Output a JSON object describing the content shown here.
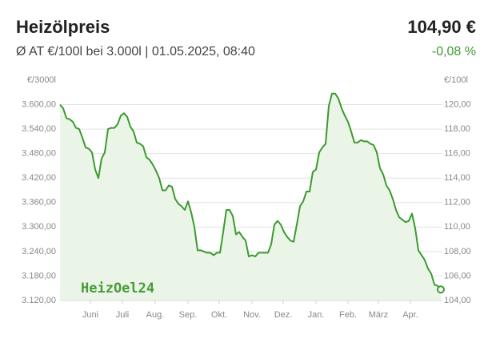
{
  "chart_data": {
    "type": "line",
    "title": "Heizölpreis",
    "price": "104,90 €",
    "subtitle": "Ø AT €/100l bei 3.000l | 01.05.2025, 08:40",
    "change": "-0,08 %",
    "ylabel": "€/3000l",
    "y2label": "€/100l",
    "watermark": "HeizOel24",
    "grid": true,
    "area": true,
    "xlim": [
      0,
      119
    ],
    "xticks": [
      {
        "value": 9.5,
        "label": "Juni"
      },
      {
        "value": 19.5,
        "label": "Juli"
      },
      {
        "value": 29.75,
        "label": "Aug."
      },
      {
        "value": 40,
        "label": "Sep."
      },
      {
        "value": 49.75,
        "label": "Okt."
      },
      {
        "value": 60,
        "label": "Nov."
      },
      {
        "value": 69.75,
        "label": "Dez."
      },
      {
        "value": 80,
        "label": "Jan."
      },
      {
        "value": 90,
        "label": "Feb."
      },
      {
        "value": 99.5,
        "label": "März"
      },
      {
        "value": 109.5,
        "label": "Apr."
      }
    ],
    "ylim": [
      3120,
      3660
    ],
    "yticks": [
      {
        "value": 3600,
        "label": "3.600,00"
      },
      {
        "value": 3540,
        "label": "3.540,00"
      },
      {
        "value": 3480,
        "label": "3.480,00"
      },
      {
        "value": 3420,
        "label": "3.420,00"
      },
      {
        "value": 3360,
        "label": "3.360,00"
      },
      {
        "value": 3300,
        "label": "3.300,00"
      },
      {
        "value": 3240,
        "label": "3.240,00"
      },
      {
        "value": 3180,
        "label": "3.180,00"
      },
      {
        "value": 3120,
        "label": "3.120,00"
      }
    ],
    "y2lim": [
      104,
      122
    ],
    "y2ticks": [
      {
        "value": 120,
        "label": "120,00"
      },
      {
        "value": 118,
        "label": "118,00"
      },
      {
        "value": 116,
        "label": "116,00"
      },
      {
        "value": 114,
        "label": "114,00"
      },
      {
        "value": 112,
        "label": "112,00"
      },
      {
        "value": 110,
        "label": "110,00"
      },
      {
        "value": 108,
        "label": "108,00"
      },
      {
        "value": 106,
        "label": "106,00"
      },
      {
        "value": 104,
        "label": "104,00"
      }
    ],
    "series": [
      {
        "color": "#3c9a2f",
        "fill": "#eaf5e7",
        "axis": "y2",
        "values": [
          120.0,
          119.7,
          118.9,
          118.8,
          118.6,
          118.1,
          118.0,
          117.3,
          116.5,
          116.4,
          116.1,
          114.7,
          114.0,
          115.6,
          116.1,
          118.0,
          118.1,
          118.1,
          118.4,
          119.1,
          119.3,
          119.0,
          118.2,
          117.8,
          116.9,
          116.8,
          116.6,
          115.7,
          115.5,
          115.1,
          114.6,
          114.0,
          113.0,
          113.0,
          113.4,
          113.3,
          112.3,
          111.9,
          111.7,
          111.4,
          112.1,
          111.2,
          110.0,
          108.1,
          108.1,
          108.0,
          107.9,
          107.9,
          107.7,
          107.9,
          107.9,
          109.6,
          111.4,
          111.4,
          110.9,
          109.4,
          109.6,
          109.2,
          108.9,
          107.6,
          107.7,
          107.6,
          107.9,
          107.9,
          107.9,
          107.9,
          108.6,
          110.2,
          110.5,
          110.2,
          109.6,
          109.2,
          108.9,
          108.8,
          110.2,
          111.7,
          112.1,
          112.9,
          112.9,
          114.5,
          114.7,
          116.1,
          116.5,
          116.8,
          119.9,
          120.9,
          120.9,
          120.5,
          119.7,
          119.1,
          118.6,
          117.8,
          116.9,
          116.9,
          117.1,
          117.0,
          117.0,
          116.8,
          116.7,
          116.1,
          114.8,
          114.3,
          113.4,
          113.0,
          112.3,
          111.4,
          110.8,
          110.6,
          110.4,
          110.5,
          111.1,
          109.9,
          108.1,
          107.7,
          107.3,
          106.6,
          106.2,
          105.3,
          105.2,
          104.9
        ]
      }
    ]
  }
}
